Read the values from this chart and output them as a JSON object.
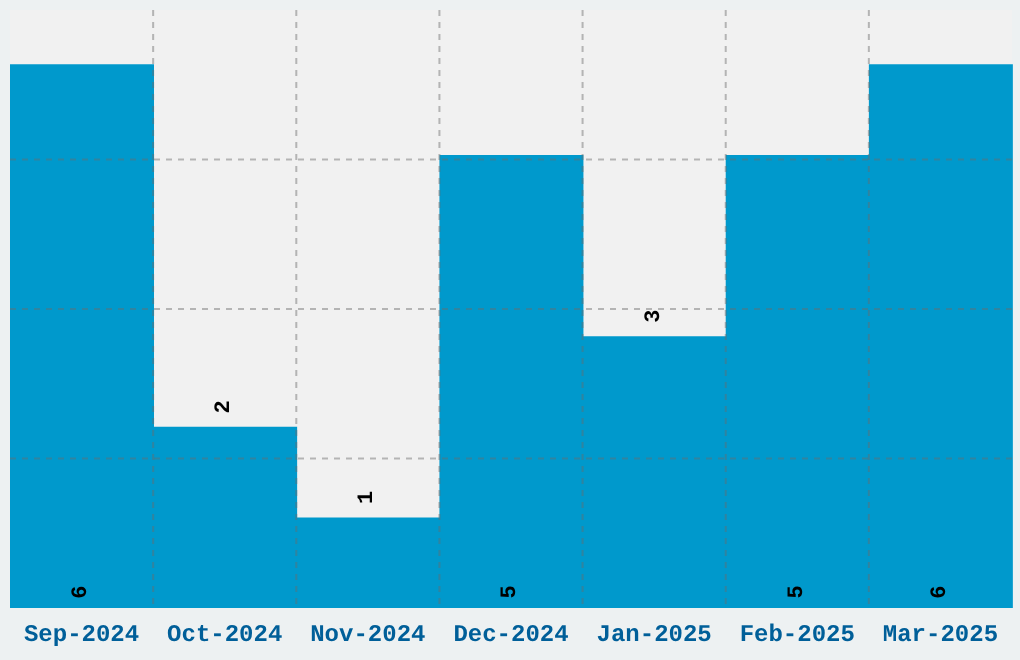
{
  "chart_data": {
    "type": "bar",
    "categories": [
      "Sep-2024",
      "Oct-2024",
      "Nov-2024",
      "Dec-2024",
      "Jan-2025",
      "Feb-2025",
      "Mar-2025"
    ],
    "values": [
      6,
      2,
      1,
      5,
      3,
      5,
      6
    ],
    "color": "#0099cc",
    "ylim": [
      0,
      6.6
    ],
    "grid": true,
    "data_labels": true,
    "tick_labels": "x"
  }
}
